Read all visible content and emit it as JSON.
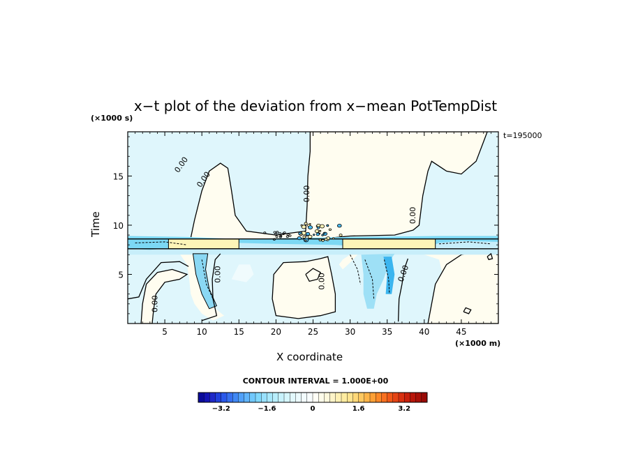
{
  "chart_data": {
    "type": "heatmap",
    "title": "x−t plot of the deviation from x−mean PotTempDist",
    "xlabel": "X coordinate",
    "ylabel": "Time",
    "x_unit": "(×1000 m)",
    "y_unit": "(×1000 s)",
    "time_label": "t=195000",
    "xlim": [
      0,
      50
    ],
    "ylim": [
      0,
      19.5
    ],
    "x_ticks": [
      5,
      10,
      15,
      20,
      25,
      30,
      35,
      40,
      45
    ],
    "y_ticks": [
      5,
      10,
      15
    ],
    "contour_interval_label": "CONTOUR INTERVAL = 1.000E+00",
    "contour_labels": [
      {
        "text": "0.00",
        "x": 7.5,
        "y": 16.0,
        "angle": -55
      },
      {
        "text": "0.00",
        "x": 10.5,
        "y": 14.5,
        "angle": -55
      },
      {
        "text": "0.00",
        "x": 24.5,
        "y": 13.2,
        "angle": -90
      },
      {
        "text": "0.00",
        "x": 38.8,
        "y": 11.0,
        "angle": -90
      },
      {
        "text": "0.00",
        "x": 12.5,
        "y": 5.0,
        "angle": -90
      },
      {
        "text": "0.00",
        "x": 26.5,
        "y": 4.3,
        "angle": -90
      },
      {
        "text": "0.00",
        "x": 37.5,
        "y": 5.0,
        "angle": -70
      },
      {
        "text": "0.00",
        "x": 4.0,
        "y": 2.0,
        "angle": -90
      }
    ],
    "colorbar": {
      "min": -4.0,
      "max": 4.0,
      "step": 0.2,
      "tick_labels": [
        "−3.2",
        "−1.6",
        "0",
        "1.6",
        "3.2"
      ],
      "tick_values": [
        -3.2,
        -1.6,
        0,
        1.6,
        3.2
      ],
      "colors": [
        "#0a0a9a",
        "#1414b4",
        "#1e28c8",
        "#2040dc",
        "#2a58ea",
        "#3670f0",
        "#4088f4",
        "#50a0f8",
        "#60b4fa",
        "#70c8fc",
        "#80d8fc",
        "#98e0fc",
        "#a8e8fc",
        "#b8eefc",
        "#c8f2fc",
        "#d6f6fc",
        "#e2f8fc",
        "#ecfafd",
        "#f2fcfe",
        "#f8fdfe",
        "#fffef6",
        "#fefcea",
        "#fef8dc",
        "#fef4c8",
        "#fef0b4",
        "#feeca0",
        "#fee490",
        "#fed878",
        "#fec860",
        "#feb448",
        "#fea036",
        "#fc8828",
        "#f87020",
        "#f05818",
        "#e44414",
        "#d83010",
        "#c8200c",
        "#b8160a",
        "#a81008",
        "#980a06"
      ]
    },
    "colors": {
      "cold_region": "#dff6fc",
      "warm_region": "#fffdf0",
      "warm_band": "#fdf4b8",
      "blue_band": "#7cd8f4",
      "deep_blue": "#3bb5ef"
    }
  }
}
